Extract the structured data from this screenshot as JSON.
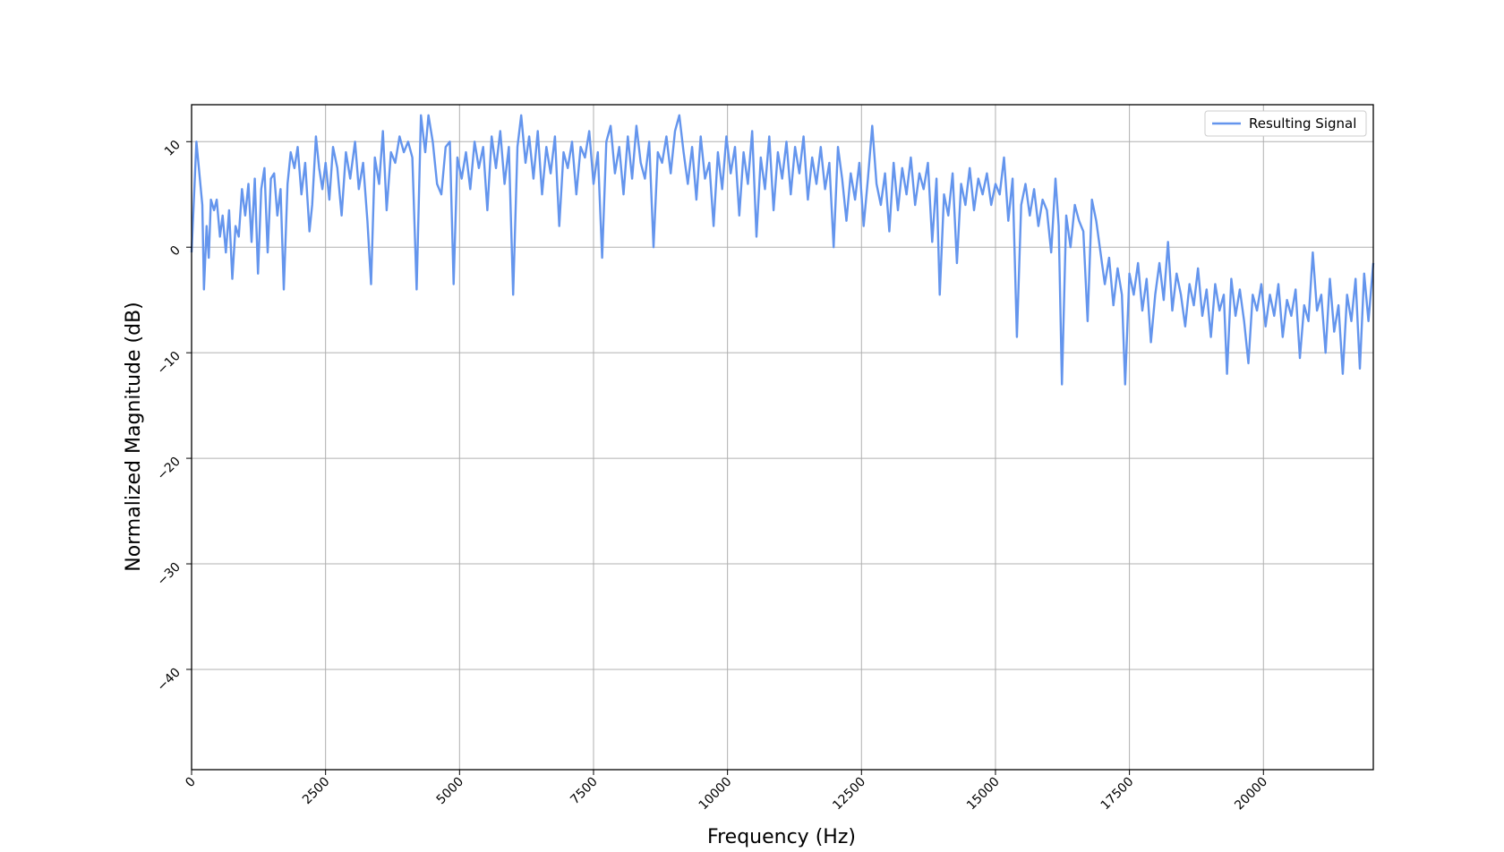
{
  "chart_data": {
    "type": "line",
    "title": "",
    "xlabel": "Frequency (Hz)",
    "ylabel": "Normalized Magnitude (dB)",
    "xlim": [
      0,
      22050
    ],
    "ylim": [
      -49.5,
      13.5
    ],
    "xticks": [
      0,
      2500,
      5000,
      7500,
      10000,
      12500,
      15000,
      17500,
      20000
    ],
    "yticks": [
      -40,
      -30,
      -20,
      -10,
      0,
      10
    ],
    "x_tick_labels": [
      "0",
      "2500",
      "5000",
      "7500",
      "10000",
      "12500",
      "15000",
      "17500",
      "20000"
    ],
    "y_tick_labels": [
      "−40",
      "−30",
      "−20",
      "−10",
      "0",
      "10"
    ],
    "grid": true,
    "legend_position": "top-right",
    "series": [
      {
        "name": "Resulting Signal",
        "color": "#6495ED",
        "points": [
          [
            0,
            -0.5
          ],
          [
            90,
            10.0
          ],
          [
            200,
            4.0
          ],
          [
            230,
            -4.0
          ],
          [
            280,
            2.0
          ],
          [
            320,
            -1.0
          ],
          [
            360,
            4.5
          ],
          [
            420,
            3.5
          ],
          [
            470,
            4.5
          ],
          [
            530,
            1.0
          ],
          [
            580,
            3.0
          ],
          [
            640,
            -0.5
          ],
          [
            700,
            3.5
          ],
          [
            760,
            -3.0
          ],
          [
            820,
            2.0
          ],
          [
            880,
            1.0
          ],
          [
            940,
            5.5
          ],
          [
            1000,
            3.0
          ],
          [
            1060,
            6.0
          ],
          [
            1120,
            0.5
          ],
          [
            1180,
            6.5
          ],
          [
            1240,
            -2.5
          ],
          [
            1300,
            5.5
          ],
          [
            1360,
            7.5
          ],
          [
            1420,
            -0.5
          ],
          [
            1480,
            6.5
          ],
          [
            1540,
            7.0
          ],
          [
            1600,
            3.0
          ],
          [
            1660,
            5.5
          ],
          [
            1720,
            -4.0
          ],
          [
            1790,
            6.0
          ],
          [
            1850,
            9.0
          ],
          [
            1920,
            7.5
          ],
          [
            1980,
            9.5
          ],
          [
            2050,
            5.0
          ],
          [
            2120,
            8.0
          ],
          [
            2200,
            1.5
          ],
          [
            2250,
            4.0
          ],
          [
            2320,
            10.5
          ],
          [
            2380,
            7.5
          ],
          [
            2440,
            5.5
          ],
          [
            2500,
            8.0
          ],
          [
            2570,
            4.5
          ],
          [
            2640,
            9.5
          ],
          [
            2720,
            7.5
          ],
          [
            2800,
            3.0
          ],
          [
            2880,
            9.0
          ],
          [
            2960,
            6.5
          ],
          [
            3050,
            10.0
          ],
          [
            3120,
            5.5
          ],
          [
            3200,
            8.0
          ],
          [
            3280,
            2.5
          ],
          [
            3350,
            -3.5
          ],
          [
            3420,
            8.5
          ],
          [
            3500,
            6.0
          ],
          [
            3570,
            11.0
          ],
          [
            3640,
            3.5
          ],
          [
            3720,
            9.0
          ],
          [
            3800,
            8.0
          ],
          [
            3880,
            10.5
          ],
          [
            3960,
            9.0
          ],
          [
            4040,
            10.0
          ],
          [
            4120,
            8.5
          ],
          [
            4200,
            -4.0
          ],
          [
            4280,
            12.5
          ],
          [
            4360,
            9.0
          ],
          [
            4420,
            12.5
          ],
          [
            4500,
            10.0
          ],
          [
            4580,
            6.0
          ],
          [
            4660,
            5.0
          ],
          [
            4740,
            9.5
          ],
          [
            4820,
            10.0
          ],
          [
            4890,
            -3.5
          ],
          [
            4960,
            8.5
          ],
          [
            5040,
            6.5
          ],
          [
            5120,
            9.0
          ],
          [
            5200,
            5.5
          ],
          [
            5280,
            10.0
          ],
          [
            5360,
            7.5
          ],
          [
            5440,
            9.5
          ],
          [
            5520,
            3.5
          ],
          [
            5600,
            10.5
          ],
          [
            5680,
            7.5
          ],
          [
            5760,
            11.0
          ],
          [
            5840,
            6.0
          ],
          [
            5920,
            9.5
          ],
          [
            6000,
            -4.5
          ],
          [
            6080,
            9.5
          ],
          [
            6150,
            12.5
          ],
          [
            6230,
            8.0
          ],
          [
            6300,
            10.5
          ],
          [
            6380,
            6.5
          ],
          [
            6460,
            11.0
          ],
          [
            6540,
            5.0
          ],
          [
            6620,
            9.5
          ],
          [
            6700,
            7.0
          ],
          [
            6780,
            10.5
          ],
          [
            6860,
            2.0
          ],
          [
            6940,
            9.0
          ],
          [
            7020,
            7.5
          ],
          [
            7100,
            10.0
          ],
          [
            7180,
            5.0
          ],
          [
            7260,
            9.5
          ],
          [
            7340,
            8.5
          ],
          [
            7420,
            11.0
          ],
          [
            7500,
            6.0
          ],
          [
            7580,
            9.0
          ],
          [
            7660,
            -1.0
          ],
          [
            7740,
            10.0
          ],
          [
            7820,
            11.5
          ],
          [
            7900,
            7.0
          ],
          [
            7980,
            9.5
          ],
          [
            8060,
            5.0
          ],
          [
            8140,
            10.5
          ],
          [
            8220,
            6.5
          ],
          [
            8300,
            11.5
          ],
          [
            8380,
            8.0
          ],
          [
            8460,
            6.5
          ],
          [
            8540,
            10.0
          ],
          [
            8620,
            0.0
          ],
          [
            8700,
            9.0
          ],
          [
            8780,
            8.0
          ],
          [
            8860,
            10.5
          ],
          [
            8940,
            7.0
          ],
          [
            9020,
            11.0
          ],
          [
            9100,
            12.5
          ],
          [
            9180,
            9.0
          ],
          [
            9260,
            6.0
          ],
          [
            9340,
            9.5
          ],
          [
            9420,
            4.5
          ],
          [
            9500,
            10.5
          ],
          [
            9580,
            6.5
          ],
          [
            9660,
            8.0
          ],
          [
            9740,
            2.0
          ],
          [
            9820,
            9.0
          ],
          [
            9900,
            5.5
          ],
          [
            9980,
            10.5
          ],
          [
            10060,
            7.0
          ],
          [
            10140,
            9.5
          ],
          [
            10220,
            3.0
          ],
          [
            10300,
            9.0
          ],
          [
            10380,
            6.0
          ],
          [
            10460,
            11.0
          ],
          [
            10540,
            1.0
          ],
          [
            10620,
            8.5
          ],
          [
            10700,
            5.5
          ],
          [
            10780,
            10.5
          ],
          [
            10860,
            3.5
          ],
          [
            10940,
            9.0
          ],
          [
            11020,
            6.5
          ],
          [
            11100,
            10.0
          ],
          [
            11180,
            5.0
          ],
          [
            11260,
            9.5
          ],
          [
            11340,
            7.0
          ],
          [
            11420,
            10.5
          ],
          [
            11500,
            4.5
          ],
          [
            11580,
            8.5
          ],
          [
            11660,
            6.0
          ],
          [
            11740,
            9.5
          ],
          [
            11820,
            5.5
          ],
          [
            11900,
            8.0
          ],
          [
            11980,
            0.0
          ],
          [
            12060,
            9.5
          ],
          [
            12140,
            6.5
          ],
          [
            12220,
            2.5
          ],
          [
            12300,
            7.0
          ],
          [
            12380,
            4.5
          ],
          [
            12460,
            8.0
          ],
          [
            12540,
            2.0
          ],
          [
            12620,
            6.5
          ],
          [
            12700,
            11.5
          ],
          [
            12780,
            6.0
          ],
          [
            12860,
            4.0
          ],
          [
            12940,
            7.0
          ],
          [
            13020,
            1.5
          ],
          [
            13100,
            8.0
          ],
          [
            13180,
            3.5
          ],
          [
            13260,
            7.5
          ],
          [
            13340,
            5.0
          ],
          [
            13420,
            8.5
          ],
          [
            13500,
            4.0
          ],
          [
            13580,
            7.0
          ],
          [
            13660,
            5.5
          ],
          [
            13740,
            8.0
          ],
          [
            13820,
            0.5
          ],
          [
            13900,
            6.5
          ],
          [
            13960,
            -4.5
          ],
          [
            14040,
            5.0
          ],
          [
            14120,
            3.0
          ],
          [
            14200,
            7.0
          ],
          [
            14280,
            -1.5
          ],
          [
            14360,
            6.0
          ],
          [
            14440,
            4.0
          ],
          [
            14520,
            7.5
          ],
          [
            14600,
            3.5
          ],
          [
            14680,
            6.5
          ],
          [
            14760,
            5.0
          ],
          [
            14840,
            7.0
          ],
          [
            14920,
            4.0
          ],
          [
            15000,
            6.0
          ],
          [
            15080,
            5.0
          ],
          [
            15160,
            8.5
          ],
          [
            15240,
            2.5
          ],
          [
            15320,
            6.5
          ],
          [
            15400,
            -8.5
          ],
          [
            15480,
            4.0
          ],
          [
            15560,
            6.0
          ],
          [
            15640,
            3.0
          ],
          [
            15720,
            5.5
          ],
          [
            15800,
            2.0
          ],
          [
            15880,
            4.5
          ],
          [
            15960,
            3.5
          ],
          [
            16040,
            -0.5
          ],
          [
            16120,
            6.5
          ],
          [
            16180,
            2.0
          ],
          [
            16240,
            -13.0
          ],
          [
            16320,
            3.0
          ],
          [
            16400,
            0.0
          ],
          [
            16480,
            4.0
          ],
          [
            16560,
            2.5
          ],
          [
            16640,
            1.5
          ],
          [
            16720,
            -7.0
          ],
          [
            16800,
            4.5
          ],
          [
            16880,
            2.5
          ],
          [
            16960,
            -0.5
          ],
          [
            17040,
            -3.5
          ],
          [
            17120,
            -1.0
          ],
          [
            17200,
            -5.5
          ],
          [
            17280,
            -2.0
          ],
          [
            17360,
            -4.5
          ],
          [
            17420,
            -13.0
          ],
          [
            17500,
            -2.5
          ],
          [
            17580,
            -4.5
          ],
          [
            17660,
            -1.5
          ],
          [
            17740,
            -6.0
          ],
          [
            17820,
            -3.0
          ],
          [
            17900,
            -9.0
          ],
          [
            17980,
            -4.5
          ],
          [
            18060,
            -1.5
          ],
          [
            18140,
            -5.0
          ],
          [
            18220,
            0.5
          ],
          [
            18300,
            -6.0
          ],
          [
            18380,
            -2.5
          ],
          [
            18460,
            -4.5
          ],
          [
            18540,
            -7.5
          ],
          [
            18620,
            -3.5
          ],
          [
            18700,
            -5.5
          ],
          [
            18780,
            -2.0
          ],
          [
            18860,
            -6.5
          ],
          [
            18940,
            -4.0
          ],
          [
            19020,
            -8.5
          ],
          [
            19100,
            -3.5
          ],
          [
            19180,
            -6.0
          ],
          [
            19260,
            -4.5
          ],
          [
            19320,
            -12.0
          ],
          [
            19400,
            -3.0
          ],
          [
            19480,
            -6.5
          ],
          [
            19560,
            -4.0
          ],
          [
            19640,
            -7.0
          ],
          [
            19720,
            -11.0
          ],
          [
            19800,
            -4.5
          ],
          [
            19880,
            -6.0
          ],
          [
            19960,
            -3.5
          ],
          [
            20040,
            -7.5
          ],
          [
            20120,
            -4.5
          ],
          [
            20200,
            -6.5
          ],
          [
            20280,
            -3.5
          ],
          [
            20360,
            -8.5
          ],
          [
            20440,
            -5.0
          ],
          [
            20520,
            -6.5
          ],
          [
            20600,
            -4.0
          ],
          [
            20680,
            -10.5
          ],
          [
            20760,
            -5.5
          ],
          [
            20840,
            -7.0
          ],
          [
            20920,
            -0.5
          ],
          [
            21000,
            -6.0
          ],
          [
            21080,
            -4.5
          ],
          [
            21160,
            -10.0
          ],
          [
            21240,
            -3.0
          ],
          [
            21320,
            -8.0
          ],
          [
            21400,
            -5.5
          ],
          [
            21480,
            -12.0
          ],
          [
            21560,
            -4.5
          ],
          [
            21640,
            -7.0
          ],
          [
            21720,
            -3.0
          ],
          [
            21800,
            -11.5
          ],
          [
            21880,
            -2.5
          ],
          [
            21960,
            -7.0
          ],
          [
            22050,
            -1.5
          ]
        ]
      }
    ]
  }
}
